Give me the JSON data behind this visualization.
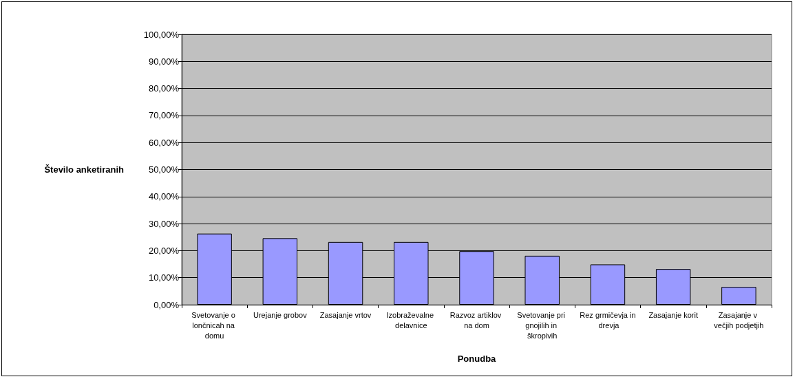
{
  "chart_data": {
    "type": "bar",
    "xlabel": "Ponudba",
    "ylabel": "Število anketiranih",
    "categories": [
      "Svetovanje o lončnicah na domu",
      "Urejanje grobov",
      "Zasajanje vrtov",
      "Izobraževalne delavnice",
      "Razvoz artiklov na dom",
      "Svetovanje pri gnojilih in škropivih",
      "Rez grmičevja in drevja",
      "Zasajanje korit",
      "Zasajanje v večjih podjetjih"
    ],
    "values": [
      26.3,
      24.6,
      23.2,
      23.2,
      19.8,
      18.1,
      14.9,
      13.2,
      6.6
    ],
    "color": "#9999ff",
    "ylim": [
      0,
      100
    ],
    "yticks": [
      {
        "value": 0,
        "label": "0,00%"
      },
      {
        "value": 10,
        "label": "10,00%"
      },
      {
        "value": 20,
        "label": "20,00%"
      },
      {
        "value": 30,
        "label": "30,00%"
      },
      {
        "value": 40,
        "label": "40,00%"
      },
      {
        "value": 50,
        "label": "50,00%"
      },
      {
        "value": 60,
        "label": "60,00%"
      },
      {
        "value": 70,
        "label": "70,00%"
      },
      {
        "value": 80,
        "label": "80,00%"
      },
      {
        "value": 90,
        "label": "90,00%"
      },
      {
        "value": 100,
        "label": "100,00%"
      }
    ],
    "grid": "y"
  }
}
